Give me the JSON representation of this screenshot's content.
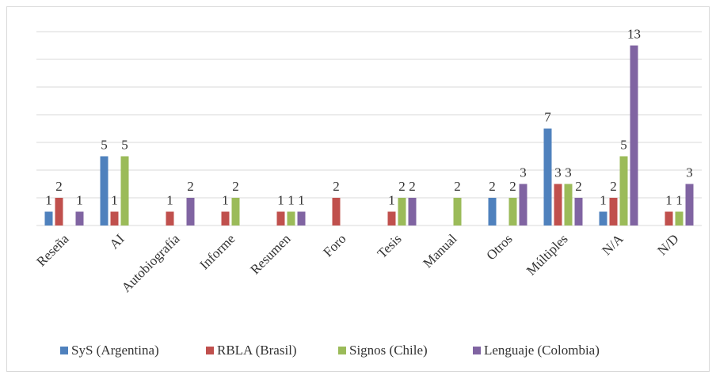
{
  "chart_data": {
    "type": "bar",
    "categories": [
      "Reseña",
      "AI",
      "Autobiografía",
      "Informe",
      "Resumen",
      "Foro",
      "Tesis",
      "Manual",
      "Otros",
      "Múltiples",
      "N/A",
      "N/D"
    ],
    "series": [
      {
        "name": "SyS (Argentina)",
        "color": "#4f81bd",
        "values": [
          1,
          5,
          null,
          null,
          null,
          null,
          null,
          null,
          2,
          7,
          1,
          null
        ]
      },
      {
        "name": "RBLA (Brasil)",
        "color": "#c0504d",
        "values": [
          2,
          1,
          1,
          1,
          1,
          2,
          1,
          null,
          null,
          3,
          2,
          1
        ]
      },
      {
        "name": "Signos (Chile)",
        "color": "#9bbb59",
        "values": [
          null,
          5,
          null,
          2,
          1,
          null,
          2,
          2,
          2,
          3,
          5,
          1
        ]
      },
      {
        "name": "Lenguaje (Colombia)",
        "color": "#8064a2",
        "values": [
          1,
          null,
          2,
          null,
          1,
          null,
          2,
          null,
          3,
          2,
          13,
          3
        ]
      }
    ],
    "ylim": [
      0,
      14
    ],
    "yticks": [
      0,
      2,
      4,
      6,
      8,
      10,
      12,
      14
    ],
    "grid": true,
    "legend": "bottom"
  }
}
